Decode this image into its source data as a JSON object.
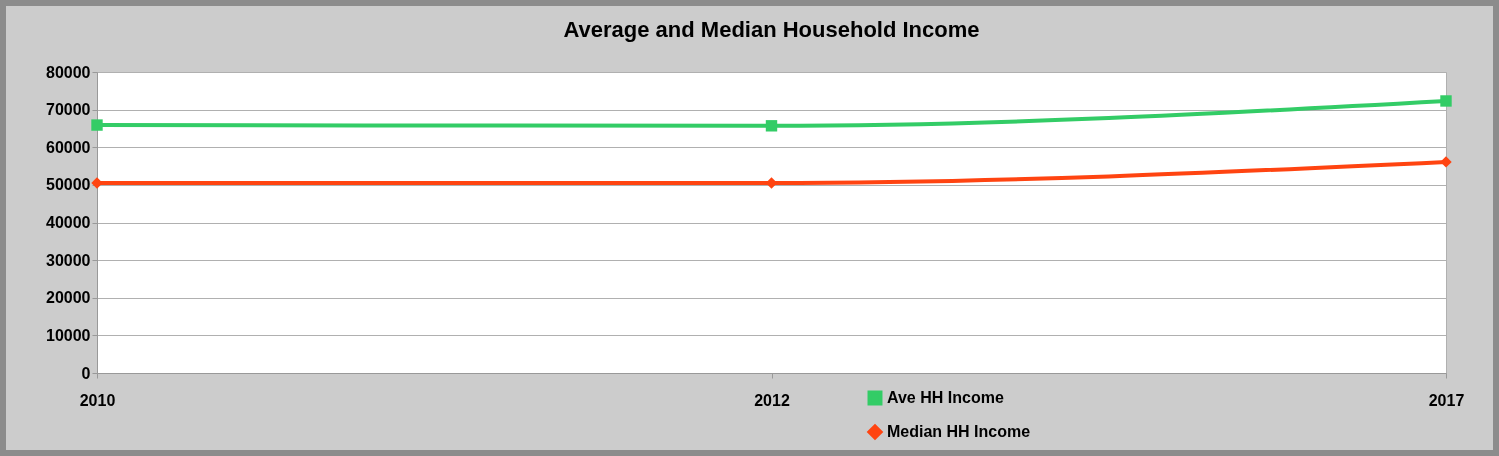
{
  "chart_data": {
    "type": "line",
    "title": "Average and Median Household Income",
    "categories": [
      "2010",
      "2012",
      "2017"
    ],
    "series": [
      {
        "name": "Ave HH Income",
        "color": "#33cc66",
        "marker": "square",
        "values": [
          65900,
          65700,
          72300
        ]
      },
      {
        "name": "Median HH Income",
        "color": "#ff4411",
        "marker": "diamond",
        "values": [
          50500,
          50500,
          56100
        ]
      }
    ],
    "ylim": [
      0,
      80000
    ],
    "yticks": [
      0,
      10000,
      20000,
      30000,
      40000,
      50000,
      60000,
      70000,
      80000
    ],
    "grid": "y",
    "legend": "bottom",
    "line_style": "solid"
  }
}
